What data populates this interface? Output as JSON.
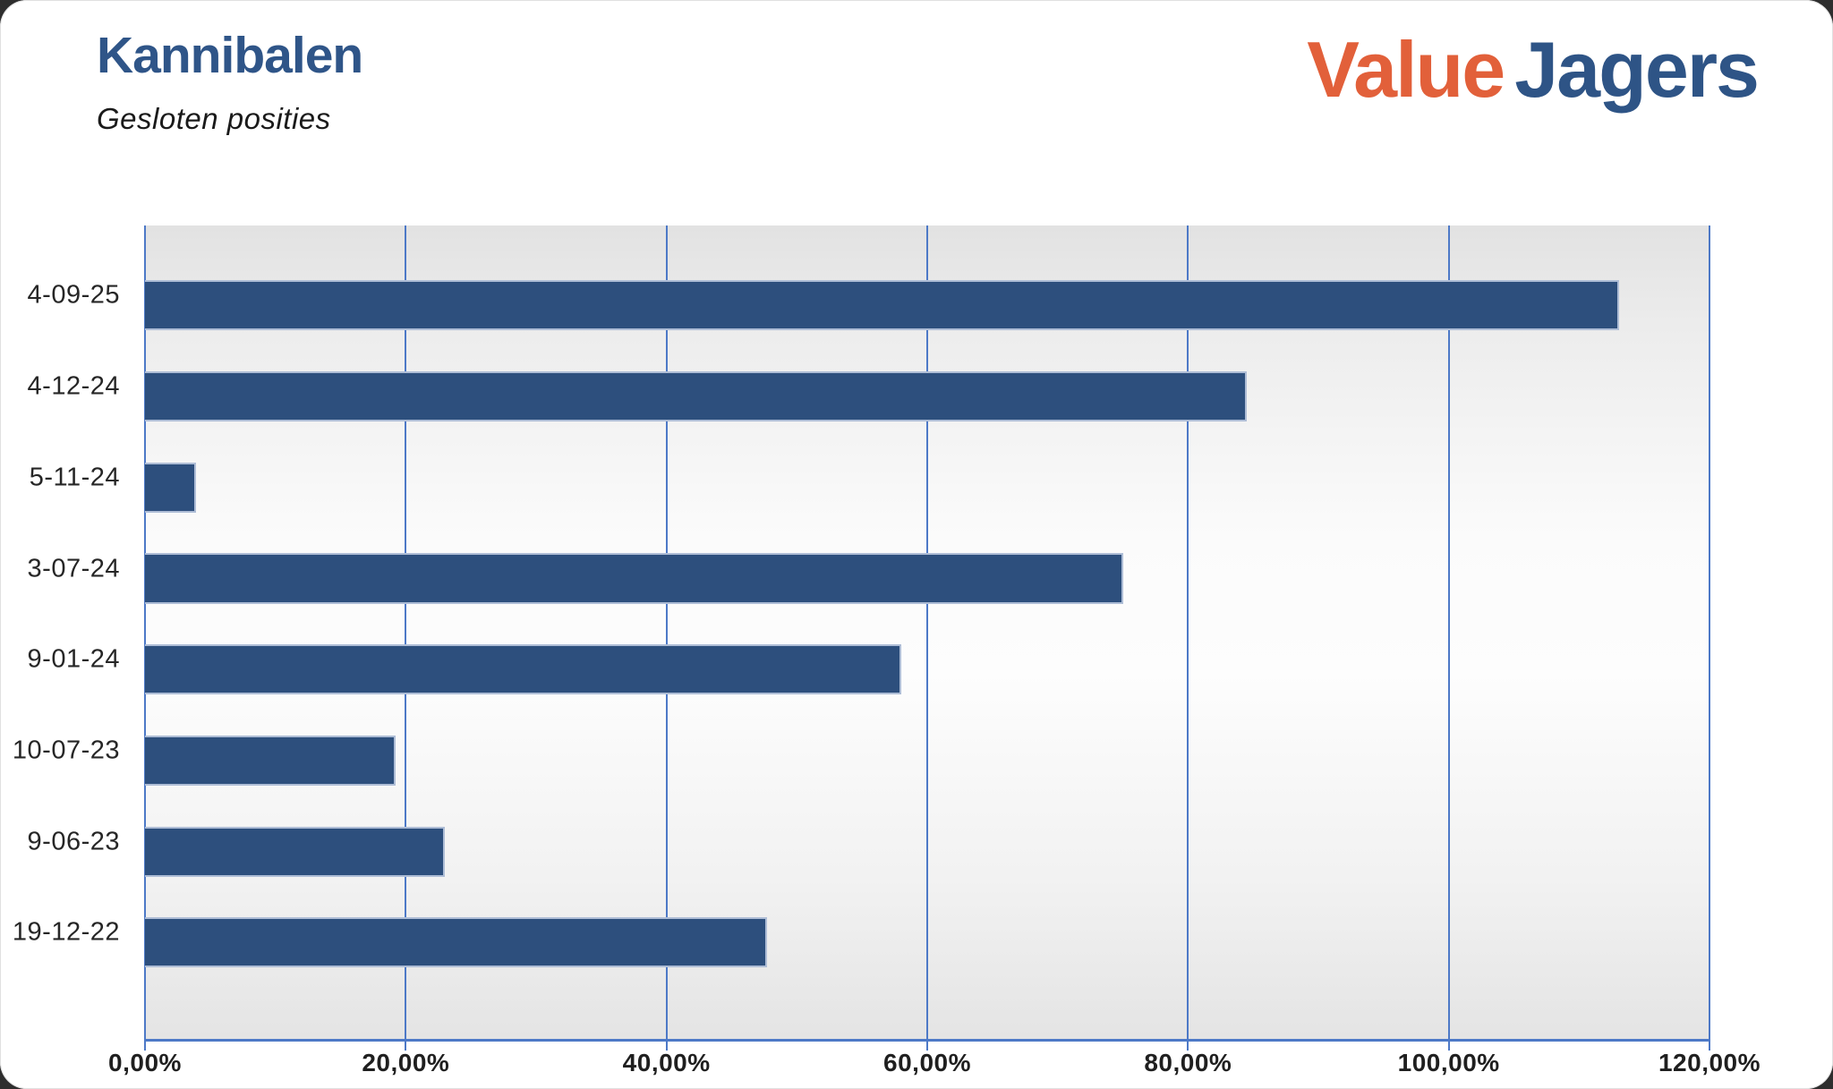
{
  "header": {
    "title": "Kannibalen",
    "subtitle": "Gesloten posities",
    "logo": {
      "part1": "Value",
      "part2": "Jagers",
      "part1_color": "#e2603a",
      "part2_color": "#2e5486"
    }
  },
  "colors": {
    "title": "#2f5588",
    "bar_fill": "#2d4f7d",
    "bar_border": "#aebdd6",
    "gridline": "#4d79c7"
  },
  "chart_data": {
    "type": "bar",
    "orientation": "horizontal",
    "title": "Kannibalen",
    "subtitle": "Gesloten posities",
    "categories": [
      "4-09-25",
      "4-12-24",
      "5-11-24",
      "3-07-24",
      "9-01-24",
      "10-07-23",
      "9-06-23",
      "19-12-22"
    ],
    "values": [
      113.1,
      84.5,
      3.9,
      75.0,
      58.0,
      19.2,
      23.0,
      47.7
    ],
    "value_unit": "%",
    "xlabel": "",
    "ylabel": "",
    "xlim": [
      0,
      120
    ],
    "x_tick_values": [
      0,
      20,
      40,
      60,
      80,
      100,
      120
    ],
    "x_tick_labels": [
      "0,00%",
      "20,00%",
      "40,00%",
      "60,00%",
      "80,00%",
      "100,00%",
      "120,00%"
    ],
    "grid": true,
    "legend": false
  }
}
